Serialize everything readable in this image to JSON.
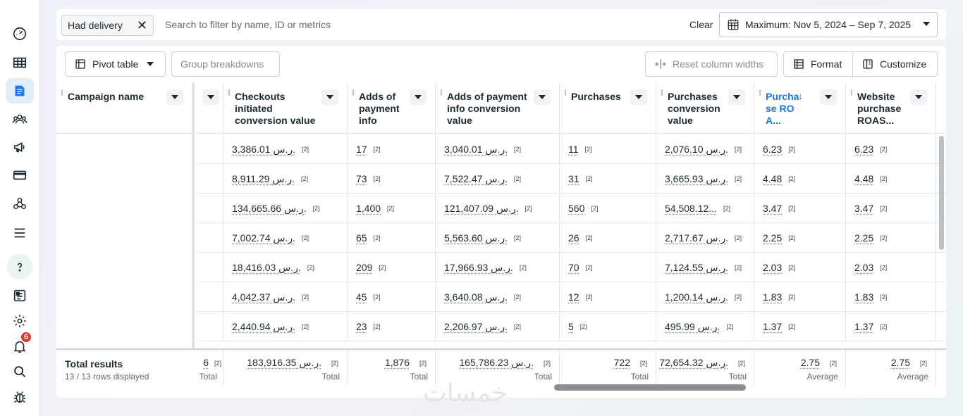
{
  "sidebar": {
    "items": [
      {
        "icon": "dashboard-icon"
      },
      {
        "icon": "table-icon"
      },
      {
        "icon": "campaigns-icon",
        "active": true
      },
      {
        "icon": "audiences-icon"
      },
      {
        "icon": "megaphone-icon"
      },
      {
        "icon": "billing-card-icon"
      },
      {
        "icon": "network-icon"
      },
      {
        "icon": "menu-icon"
      },
      {
        "icon": "help-icon"
      },
      {
        "icon": "reports-icon"
      },
      {
        "icon": "settings-gear-icon"
      },
      {
        "icon": "notifications-bell-icon",
        "badge": "6"
      },
      {
        "icon": "search-icon"
      },
      {
        "icon": "bug-report-icon"
      }
    ]
  },
  "filterbar": {
    "chip_label": "Had delivery",
    "search_placeholder": "Search to filter by name, ID or metrics",
    "clear_label": "Clear",
    "date_range": "Maximum: Nov 5, 2024 – Sep 7, 2025"
  },
  "toolbar": {
    "pivot_label": "Pivot table",
    "group_label": "Group breakdowns",
    "reset_label": "Reset column widths",
    "format_label": "Format",
    "customize_label": "Customize"
  },
  "table": {
    "frozen_header": "Campaign name",
    "columns": [
      {
        "label": "Checkouts initiated conversion value"
      },
      {
        "label": "Adds of payment info"
      },
      {
        "label": "Adds of payment info conversion value"
      },
      {
        "label": "Purchases"
      },
      {
        "label": "Purchases conversion value"
      },
      {
        "label": "Purcha se ROA..."
      },
      {
        "label": "Website purchase ROAS..."
      }
    ],
    "rows": [
      [
        "3,386.01 ر.س.",
        "17",
        "3,040.01 ر.س.",
        "11",
        "2,076.10 ر.س.",
        "6.23",
        "6.23"
      ],
      [
        "8,911.29 ر.س.",
        "73",
        "7,522.47 ر.س.",
        "31",
        "3,665.93 ر.س.",
        "4.48",
        "4.48"
      ],
      [
        "134,665.66 ر.س.",
        "1,400",
        "121,407.09 ر.س.",
        "560",
        "54,508.12...",
        "3.47",
        "3.47"
      ],
      [
        "7,002.74 ر.س.",
        "65",
        "5,563.60 ر.س.",
        "26",
        "2,717.67 ر.س.",
        "2.25",
        "2.25"
      ],
      [
        "18,416.03 ر.س.",
        "209",
        "17,966.93 ر.س.",
        "70",
        "7,124.55 ر.س.",
        "2.03",
        "2.03"
      ],
      [
        "4,042.37 ر.س.",
        "45",
        "3,640.08 ر.س.",
        "12",
        "1,200.14 ر.س.",
        "1.83",
        "1.83"
      ],
      [
        "2,440.94 ر.س.",
        "23",
        "2,206.97 ر.س.",
        "5",
        "495.99 ر.س.",
        "1.37",
        "1.37"
      ]
    ],
    "note": "[2]",
    "partial_col_total": "6",
    "totals": {
      "title": "Total results",
      "subtitle": "13 / 13 rows displayed",
      "values": [
        "183,916.35 ر.س.",
        "1,876",
        "165,786.23 ر.س.",
        "722",
        "72,654.32 ر.س.",
        "2.75",
        "2.75"
      ],
      "labels": [
        "Total",
        "Total",
        "Total",
        "Total",
        "Total",
        "Average",
        "Average"
      ]
    }
  },
  "watermark": "خمسات"
}
